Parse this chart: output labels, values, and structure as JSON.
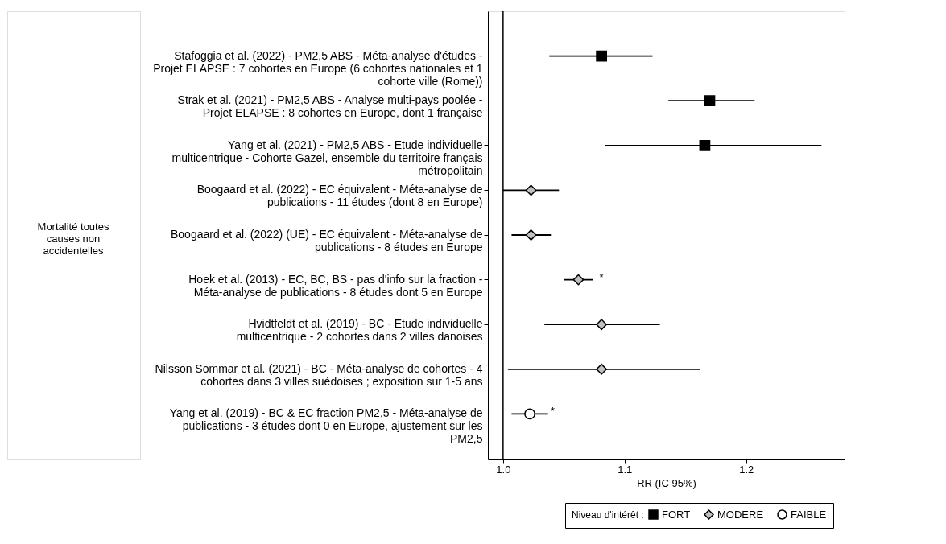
{
  "chart_data": {
    "type": "scatter",
    "categories": [
      "Stafoggia et al. (2022) - PM2,5 ABS - Méta-analyse d'études - Projet ELAPSE : 7 cohortes en Europe (6 cohortes nationales et 1 cohorte ville (Rome))",
      "Strak et al. (2021) - PM2,5 ABS - Analyse multi-pays poolée - Projet ELAPSE : 8 cohortes en Europe, dont 1 française",
      "Yang et al. (2021) - PM2,5 ABS - Etude individuelle multicentrique - Cohorte Gazel, ensemble du territoire français métropolitain",
      "Boogaard et al. (2022) - EC équivalent - Méta-analyse de publications - 11 études (dont 8 en Europe)",
      "Boogaard et al. (2022) (UE) - EC équivalent - Méta-analyse de publications - 8 études en Europe",
      "Hoek et al. (2013) - EC, BC, BS - pas d'info sur la fraction - Méta-analyse de publications - 8 études dont 5 en Europe",
      "Hvidtfeldt et al. (2019) - BC - Etude individuelle multicentrique - 2 cohortes dans 2 villes danoises",
      "Nilsson Sommar et al. (2021) - BC - Méta-analyse de cohortes - 4 cohortes dans 3 villes suédoises ; exposition sur 1-5 ans",
      "Yang et al. (2019) - BC & EC fraction PM2,5 - Méta-analyse de publications - 3 études dont 0 en Europe, ajustement sur les PM2,5"
    ],
    "orientation": "horizontal",
    "series": [
      {
        "name": "FORT",
        "color": "#000000",
        "marker": "square",
        "values": [
          1.081,
          1.17,
          1.166,
          null,
          null,
          null,
          null,
          null,
          null
        ],
        "errors": [
          [
            1.038,
            1.123
          ],
          [
            1.136,
            1.207
          ],
          [
            1.084,
            1.262
          ],
          null,
          null,
          null,
          null,
          null,
          null
        ]
      },
      {
        "name": "MODERE",
        "color": "#c0c0c0",
        "marker": "diamond",
        "values": [
          null,
          null,
          null,
          1.023,
          1.023,
          1.062,
          1.081,
          1.081,
          null
        ],
        "errors": [
          null,
          null,
          null,
          [
            1.0,
            1.046
          ],
          [
            1.007,
            1.04
          ],
          [
            1.05,
            1.074
          ],
          [
            1.034,
            1.129
          ],
          [
            1.004,
            1.162
          ],
          null
        ]
      },
      {
        "name": "FAIBLE",
        "color": "#ffffff",
        "marker": "circle",
        "values": [
          null,
          null,
          null,
          null,
          null,
          null,
          null,
          null,
          1.022
        ],
        "errors": [
          null,
          null,
          null,
          null,
          null,
          null,
          null,
          null,
          [
            1.007,
            1.037
          ]
        ]
      }
    ],
    "xlabel": "RR (IC 95%)",
    "xlim": [
      0.9875,
      1.281
    ],
    "xticks": [
      {
        "value": 1,
        "label": "1.0"
      },
      {
        "value": 1.1,
        "label": "1.1"
      },
      {
        "value": 1.2,
        "label": "1.2"
      }
    ],
    "ref_lines": [
      {
        "axis": "x",
        "value": 1,
        "color": "#000000"
      }
    ],
    "legend_title": "Niveau d'intérêt :",
    "legend": "bottom right",
    "grid": false,
    "annotations": [
      "Mortalité toutes causes non accidentelles",
      {
        "text": "*",
        "x": 1.062,
        "y": "Hoek et al. (2013) - EC, BC, BS - pas d'info sur la fraction - Méta-analyse de publications - 8 études dont 5 en Europe"
      },
      {
        "text": "*",
        "x": 1.022,
        "y": "Yang et al. (2019) - BC & EC fraction PM2,5 - Méta-analyse de publications - 3 études dont 0 en Europe, ajustement sur les PM2,5"
      }
    ]
  }
}
